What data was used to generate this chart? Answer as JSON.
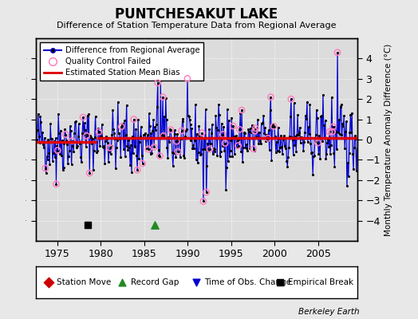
{
  "title": "PUNTCHESAKUT LAKE",
  "subtitle": "Difference of Station Temperature Data from Regional Average",
  "ylabel": "Monthly Temperature Anomaly Difference (°C)",
  "ylim": [
    -5,
    5
  ],
  "xlim": [
    1972.5,
    2009.5
  ],
  "yticks": [
    -4,
    -3,
    -2,
    -1,
    0,
    1,
    2,
    3,
    4
  ],
  "xticks": [
    1975,
    1980,
    1985,
    1990,
    1995,
    2000,
    2005
  ],
  "fig_bg_color": "#e8e8e8",
  "plot_bg_color": "#dcdcdc",
  "grid_color": "#ffffff",
  "line_color": "#0000cc",
  "stem_color": "#8888ff",
  "bias_color": "#dd0000",
  "bias_seg1_y": -0.12,
  "bias_seg1_x0": 1972.5,
  "bias_seg1_x1": 1979.5,
  "bias_seg2_y": 0.08,
  "bias_seg2_x0": 1979.5,
  "bias_seg2_x1": 2009.5,
  "empirical_break_x": 1978.5,
  "empirical_break_y": -4.2,
  "record_gap_x": 1986.2,
  "record_gap_y": -4.2,
  "watermark": "Berkeley Earth",
  "seed": 42
}
